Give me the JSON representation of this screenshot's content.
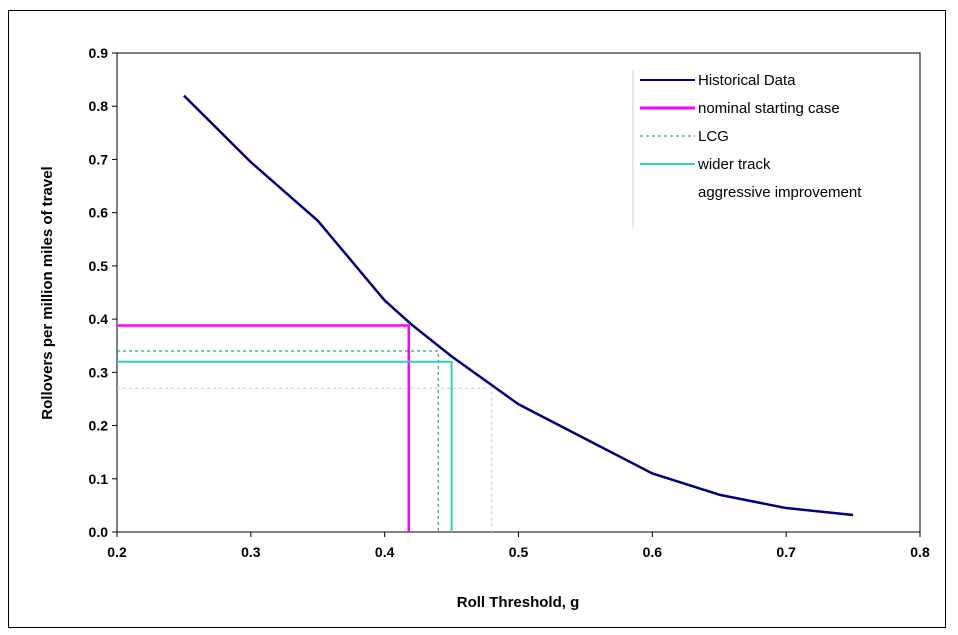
{
  "chart_data": {
    "type": "line",
    "xlabel": "Roll Threshold, g",
    "ylabel": "Rollovers per million miles of travel",
    "xlim": [
      0.2,
      0.8
    ],
    "ylim": [
      0.0,
      0.9
    ],
    "xticks": [
      "0.2",
      "0.3",
      "0.4",
      "0.5",
      "0.6",
      "0.7",
      "0.8"
    ],
    "yticks": [
      "0.0",
      "0.1",
      "0.2",
      "0.3",
      "0.4",
      "0.5",
      "0.6",
      "0.7",
      "0.8",
      "0.9"
    ],
    "grid": false,
    "legend_position": "top-right",
    "series": [
      {
        "name": "Historical Data",
        "color": "#000080",
        "style": "solid",
        "points": [
          [
            0.25,
            0.82
          ],
          [
            0.3,
            0.695
          ],
          [
            0.35,
            0.585
          ],
          [
            0.4,
            0.435
          ],
          [
            0.42,
            0.39
          ],
          [
            0.45,
            0.33
          ],
          [
            0.5,
            0.24
          ],
          [
            0.55,
            0.175
          ],
          [
            0.6,
            0.11
          ],
          [
            0.65,
            0.07
          ],
          [
            0.7,
            0.045
          ],
          [
            0.75,
            0.032
          ]
        ]
      },
      {
        "name": "nominal starting case",
        "color": "#ff00ff",
        "style": "solid",
        "marker": {
          "x": 0.418,
          "y": 0.388
        }
      },
      {
        "name": "LCG",
        "color": "#008080",
        "style": "dotted",
        "marker": {
          "x": 0.44,
          "y": 0.34
        }
      },
      {
        "name": "wider track",
        "color": "#33cccc",
        "style": "solid",
        "marker": {
          "x": 0.45,
          "y": 0.32
        }
      },
      {
        "name": "aggressive improvement",
        "color": "#a0a0a0",
        "style": "dotted",
        "marker": {
          "x": 0.48,
          "y": 0.27
        }
      }
    ]
  }
}
